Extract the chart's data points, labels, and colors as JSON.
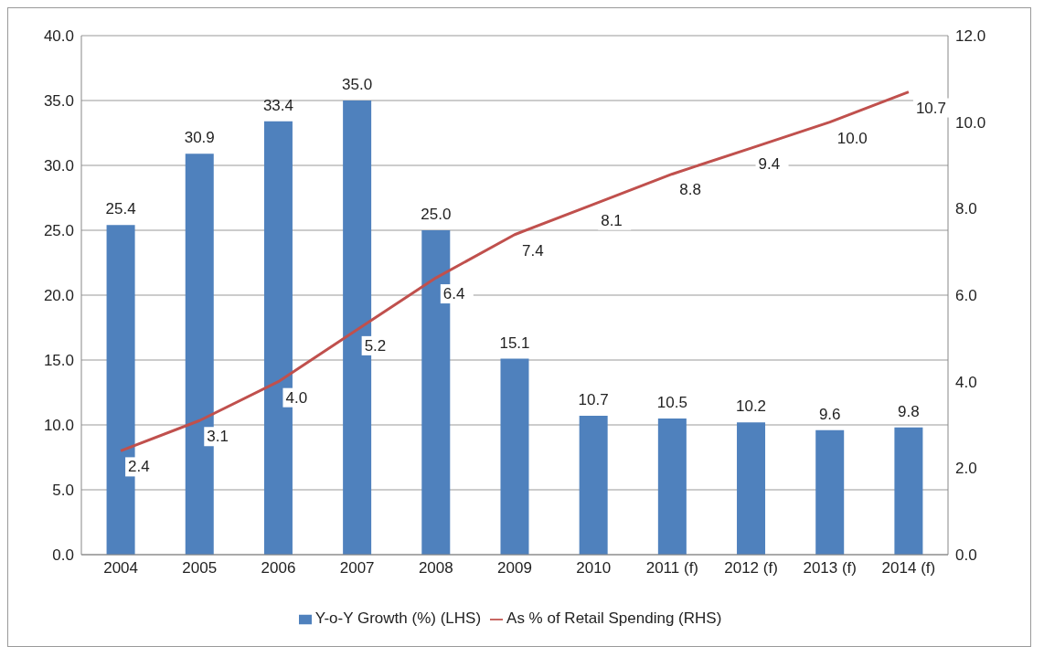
{
  "chart_data": {
    "type": "bar",
    "categories": [
      "2004",
      "2005",
      "2006",
      "2007",
      "2008",
      "2009",
      "2010",
      "2011 (f)",
      "2012 (f)",
      "2013 (f)",
      "2014 (f)"
    ],
    "series": [
      {
        "name": "Y-o-Y Growth (%) (LHS)",
        "color": "#4f81bd",
        "values": [
          25.4,
          30.9,
          33.4,
          35.0,
          25.0,
          15.1,
          10.7,
          10.5,
          10.2,
          9.6,
          9.8
        ],
        "value_labels": [
          "25.4",
          "30.9",
          "33.4",
          "35.0",
          "25.0",
          "15.1",
          "10.7",
          "10.5",
          "10.2",
          "9.6",
          "9.8"
        ]
      },
      {
        "name": "As % of Retail Spending (RHS)",
        "type": "line",
        "axis": "y2",
        "color": "#c0504d",
        "values": [
          2.4,
          3.1,
          4.0,
          5.2,
          6.4,
          7.4,
          8.1,
          8.8,
          9.4,
          10.0,
          10.7
        ],
        "value_labels": [
          "2.4",
          "3.1",
          "4.0",
          "5.2",
          "6.4",
          "7.4",
          "8.1",
          "8.8",
          "9.4",
          "10.0",
          "10.7"
        ]
      }
    ],
    "ylim": [
      0,
      40
    ],
    "yticks": [
      {
        "value": 0,
        "label": "0.0"
      },
      {
        "value": 5,
        "label": "5.0"
      },
      {
        "value": 10,
        "label": "10.0"
      },
      {
        "value": 15,
        "label": "15.0"
      },
      {
        "value": 20,
        "label": "20.0"
      },
      {
        "value": 25,
        "label": "25.0"
      },
      {
        "value": 30,
        "label": "30.0"
      },
      {
        "value": 35,
        "label": "35.0"
      },
      {
        "value": 40,
        "label": "40.0"
      }
    ],
    "y2lim": [
      0,
      12
    ],
    "y2ticks": [
      {
        "value": 0,
        "label": "0.0"
      },
      {
        "value": 2,
        "label": "2.0"
      },
      {
        "value": 4,
        "label": "4.0"
      },
      {
        "value": 6,
        "label": "6.0"
      },
      {
        "value": 8,
        "label": "8.0"
      },
      {
        "value": 10,
        "label": "10.0"
      },
      {
        "value": 12,
        "label": "12.0"
      }
    ],
    "grid": "y",
    "legend": "bottom",
    "marker": "none",
    "line_style": "solid"
  }
}
